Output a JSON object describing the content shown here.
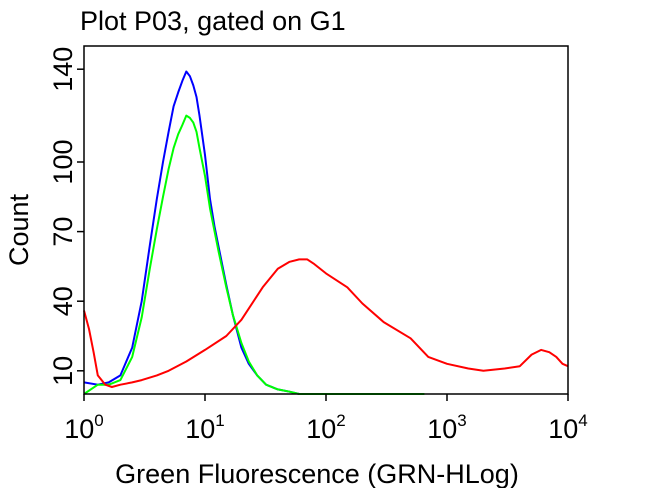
{
  "chart_data": {
    "type": "line",
    "title": "Plot P03, gated on G1",
    "xlabel": "Green Fluorescence (GRN-HLog)",
    "ylabel": "Count",
    "x_scale": "log",
    "xlim": [
      1,
      10000
    ],
    "ylim": [
      0,
      150
    ],
    "x_ticks": [
      {
        "value": 1,
        "base": "10",
        "exp": "0"
      },
      {
        "value": 10,
        "base": "10",
        "exp": "1"
      },
      {
        "value": 100,
        "base": "10",
        "exp": "2"
      },
      {
        "value": 1000,
        "base": "10",
        "exp": "3"
      },
      {
        "value": 10000,
        "base": "10",
        "exp": "4"
      }
    ],
    "y_ticks": [
      10,
      40,
      70,
      100,
      140
    ],
    "grid": false,
    "series": [
      {
        "color": "#0000ff",
        "x": [
          1,
          1.3,
          1.6,
          2,
          2.5,
          3,
          3.5,
          4,
          4.5,
          5,
          5.5,
          6,
          6.5,
          7,
          7.5,
          8,
          8.5,
          9,
          10,
          11,
          12,
          13,
          15,
          17,
          20,
          23,
          27,
          32,
          40,
          50,
          60
        ],
        "y": [
          5,
          4,
          5,
          8,
          20,
          40,
          64,
          84,
          100,
          113,
          124,
          130,
          135,
          139,
          137,
          133,
          128,
          120,
          103,
          84,
          72,
          63,
          47,
          34,
          20,
          13,
          8,
          4,
          2,
          1,
          0
        ]
      },
      {
        "color": "#00ff00",
        "x": [
          1,
          1.3,
          1.6,
          2,
          2.5,
          3,
          3.5,
          4,
          4.5,
          5,
          5.5,
          6,
          6.5,
          7,
          7.5,
          8,
          8.5,
          9,
          10,
          11,
          12,
          13,
          15,
          17,
          20,
          23,
          27,
          32,
          40,
          50,
          60,
          100,
          200,
          400,
          650
        ],
        "y": [
          0,
          4,
          4,
          6,
          16,
          33,
          54,
          71,
          85,
          97,
          106,
          112,
          116,
          120,
          119,
          117,
          113,
          106,
          94,
          80,
          70,
          61,
          46,
          34,
          22,
          14,
          8,
          4,
          2,
          1,
          0,
          0,
          0,
          0,
          0
        ]
      },
      {
        "color": "#ff0000",
        "x": [
          1,
          1.1,
          1.2,
          1.3,
          1.5,
          1.7,
          2,
          2.5,
          3,
          4,
          5,
          7,
          10,
          15,
          20,
          30,
          40,
          50,
          60,
          70,
          80,
          100,
          150,
          200,
          300,
          500,
          700,
          1000,
          1500,
          2000,
          3000,
          4000,
          5000,
          6000,
          7000,
          8000,
          9000,
          10000
        ],
        "y": [
          36,
          28,
          18,
          8,
          4,
          3,
          4,
          5,
          6,
          8,
          10,
          14,
          19,
          25,
          32,
          46,
          54,
          57,
          58,
          58,
          56,
          52,
          46,
          39,
          31,
          24,
          16,
          13,
          11,
          10,
          11,
          12,
          17,
          19,
          18,
          16,
          13,
          12
        ]
      }
    ]
  }
}
